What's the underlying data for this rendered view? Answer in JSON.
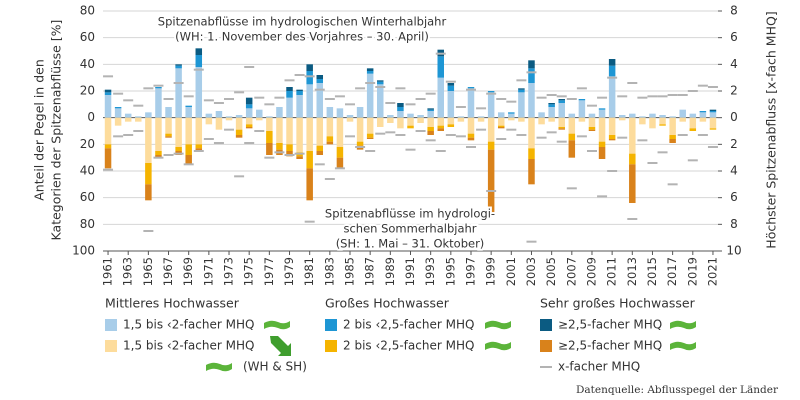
{
  "chart_data": {
    "type": "bar",
    "ylabel": [
      "Anteil der Pegel in den",
      "Kategorien der Spitzenabflüsse [%]"
    ],
    "y2label": "Höchster Spitzenabfluss [x-fach MHQ]",
    "annotations": [
      [
        "Spitzenabflüsse im hydrologischen Winterhalbjahr",
        "(WH: 1. November des Vorjahres – 30. April)"
      ],
      [
        "Spitzenabflüsse im hydrologi-",
        "schen Sommerhalbjahr",
        "(SH: 1. Mai – 31. Oktober)"
      ]
    ],
    "source": "Datenquelle: Abflusspegel der Länder",
    "legend_groups": [
      "Mittleres Hochwasser",
      "Großes Hochwasser",
      "Sehr großes Hochwasser"
    ],
    "x": [
      1961,
      1962,
      1963,
      1964,
      1965,
      1966,
      1967,
      1968,
      1969,
      1970,
      1971,
      1972,
      1973,
      1974,
      1975,
      1976,
      1977,
      1978,
      1979,
      1980,
      1981,
      1982,
      1983,
      1984,
      1985,
      1986,
      1987,
      1988,
      1989,
      1990,
      1991,
      1992,
      1993,
      1994,
      1995,
      1996,
      1997,
      1998,
      1999,
      2000,
      2001,
      2002,
      2003,
      2004,
      2005,
      2006,
      2007,
      2008,
      2009,
      2010,
      2011,
      2012,
      2013,
      2014,
      2015,
      2016,
      2017,
      2018,
      2019,
      2020,
      2021
    ],
    "xlim": [
      1960.5,
      2021.5
    ],
    "xticks": [
      1961,
      1963,
      1965,
      1967,
      1969,
      1971,
      1973,
      1975,
      1977,
      1979,
      1981,
      1983,
      1985,
      1987,
      1989,
      1991,
      1993,
      1995,
      1997,
      1999,
      2001,
      2003,
      2005,
      2007,
      2009,
      2011,
      2013,
      2015,
      2017,
      2019,
      2021
    ],
    "ylim": [
      -100,
      80
    ],
    "yticks": [
      80,
      60,
      40,
      20,
      0,
      {
        "value": -20,
        "label": "20"
      },
      {
        "value": -40,
        "label": "40"
      },
      {
        "value": -60,
        "label": "60"
      },
      {
        "value": -80,
        "label": "80"
      },
      {
        "value": -100,
        "label": "100"
      }
    ],
    "y2lim": [
      -10,
      8
    ],
    "y2ticks": [
      8,
      6,
      4,
      2,
      0,
      {
        "value": -2,
        "label": "2"
      },
      {
        "value": -4,
        "label": "4"
      },
      {
        "value": -6,
        "label": "6"
      },
      {
        "value": -8,
        "label": "8"
      },
      {
        "value": -10,
        "label": "10"
      }
    ],
    "grid": true,
    "series": [
      {
        "name": "1,5 bis ‹2-facher MHQ",
        "color": "#a8cde9",
        "values": [
          17,
          7,
          3,
          1,
          4,
          22,
          8,
          37,
          8,
          38,
          3,
          5,
          1,
          2,
          7,
          6,
          1,
          8,
          15,
          17,
          25,
          26,
          8,
          7,
          2,
          8,
          33,
          25,
          2,
          5,
          3,
          2,
          5,
          30,
          20,
          1,
          22,
          1,
          19,
          4,
          3,
          19,
          26,
          4,
          8,
          11,
          3,
          13,
          3,
          6,
          31,
          2,
          3,
          1,
          3,
          2,
          1,
          6,
          3,
          4,
          4
        ]
      },
      {
        "name": "1,5 bis ‹2-facher MHQ",
        "color": "#fddc9c",
        "values": [
          -20,
          -6,
          -3,
          -3,
          -34,
          -25,
          -12,
          -22,
          -20,
          -20,
          -5,
          -9,
          -2,
          -9,
          -5,
          -2,
          -10,
          -19,
          -20,
          -26,
          -25,
          -21,
          -14,
          -22,
          -3,
          -18,
          -12,
          -7,
          -4,
          -8,
          -6,
          -4,
          -7,
          -6,
          -5,
          -3,
          -12,
          -3,
          -18,
          -6,
          -2,
          -3,
          -23,
          -5,
          -3,
          -7,
          -12,
          -3,
          -7,
          -18,
          -13,
          -2,
          -27,
          -5,
          -8,
          -5,
          -13,
          -3,
          -8,
          -3,
          -8
        ]
      },
      {
        "name": "2 bis ‹2,5-facher MHQ",
        "color": "#1e96d4",
        "values": [
          2,
          1,
          0,
          0,
          0,
          1,
          0,
          2,
          1,
          9,
          0,
          0,
          0,
          0,
          3,
          0,
          0,
          0,
          5,
          3,
          10,
          3,
          0,
          0,
          0,
          0,
          2,
          2,
          0,
          3,
          0,
          0,
          1,
          16,
          4,
          0,
          1,
          0,
          1,
          0,
          1,
          2,
          11,
          0,
          2,
          2,
          0,
          1,
          0,
          1,
          8,
          0,
          0,
          0,
          0,
          0,
          0,
          0,
          0,
          1,
          1
        ]
      },
      {
        "name": "2 bis ‹2,5-facher MHQ",
        "color": "#f5b400",
        "values": [
          -3,
          0,
          0,
          0,
          -16,
          -3,
          -2,
          -3,
          -8,
          -3,
          0,
          0,
          0,
          -4,
          -2,
          0,
          -9,
          -5,
          -5,
          -3,
          -13,
          -4,
          -4,
          -8,
          0,
          -3,
          -3,
          0,
          0,
          0,
          -2,
          0,
          -3,
          -2,
          -2,
          0,
          -3,
          0,
          -6,
          -1,
          0,
          0,
          -8,
          0,
          0,
          -1,
          -5,
          0,
          -2,
          -4,
          -3,
          0,
          -8,
          0,
          0,
          -1,
          -3,
          0,
          -2,
          0,
          -1
        ]
      },
      {
        "name": "≥2,5-facher MHQ",
        "color": "#0b5b82",
        "values": [
          2,
          0,
          0,
          0,
          0,
          0,
          0,
          1,
          0,
          5,
          0,
          0,
          0,
          0,
          5,
          0,
          0,
          0,
          3,
          1,
          5,
          3,
          0,
          0,
          0,
          0,
          2,
          1,
          0,
          3,
          0,
          0,
          1,
          5,
          2,
          0,
          0,
          0,
          0,
          0,
          0,
          1,
          6,
          0,
          1,
          1,
          0,
          0,
          0,
          0,
          5,
          0,
          0,
          0,
          0,
          0,
          0,
          0,
          0,
          0,
          1
        ]
      },
      {
        "name": "≥2,5-facher MHQ",
        "color": "#d9821b",
        "values": [
          -15,
          0,
          0,
          0,
          -12,
          -2,
          -1,
          -3,
          -7,
          -2,
          0,
          0,
          0,
          -2,
          -1,
          0,
          -9,
          -4,
          -4,
          -2,
          -24,
          -3,
          -2,
          -8,
          0,
          -3,
          -1,
          0,
          0,
          0,
          0,
          0,
          -3,
          -2,
          0,
          0,
          -2,
          0,
          -47,
          -1,
          0,
          0,
          -19,
          0,
          0,
          -1,
          -13,
          0,
          -1,
          -9,
          -1,
          0,
          -29,
          0,
          0,
          0,
          -3,
          0,
          0,
          0,
          0
        ]
      },
      {
        "name": "x-facher MHQ",
        "note": "(WH & SH)",
        "color": "#b3b3b3",
        "axis": "y2",
        "values": [
          3.1,
          1.8,
          1.3,
          0.9,
          2.2,
          2.4,
          1.4,
          2.6,
          1.6,
          3.6,
          1.3,
          1.1,
          1.4,
          1.9,
          3.8,
          1.5,
          1.0,
          1.5,
          2.8,
          3.2,
          3.1,
          2.1,
          1.4,
          1.6,
          1.0,
          2.2,
          2.6,
          2.3,
          1.1,
          2.2,
          1.0,
          1.4,
          1.8,
          4.8,
          2.7,
          0.8,
          2.1,
          0.7,
          1.8,
          1.4,
          1.2,
          2.8,
          3.4,
          1.5,
          1.7,
          1.6,
          1.4,
          2.2,
          0.9,
          1.5,
          3.0,
          1.6,
          2.6,
          1.5,
          1.6,
          1.6,
          1.7,
          1.7,
          2.0,
          2.4,
          2.3
        ]
      },
      {
        "color": "#b3b3b3",
        "axis": "y2",
        "values": [
          -3.9,
          -1.4,
          -1.3,
          -1.0,
          -8.5,
          -3.0,
          -2.8,
          -2.7,
          -3.5,
          -2.5,
          -1.6,
          -1.9,
          -0.9,
          -4.4,
          -1.9,
          -1.0,
          -3.0,
          -2.6,
          -2.8,
          -2.7,
          -7.8,
          -3.5,
          -4.6,
          -3.8,
          -1.4,
          -2.2,
          -2.5,
          -1.2,
          -1.1,
          -1.3,
          -2.4,
          -1.0,
          -1.7,
          -2.5,
          -1.3,
          -1.4,
          -2.2,
          -0.9,
          -5.5,
          -1.6,
          -0.9,
          -1.3,
          -9.3,
          -1.5,
          -1.1,
          -1.8,
          -5.3,
          -1.4,
          -2.5,
          -5.9,
          -4.0,
          -1.5,
          -7.6,
          -1.7,
          -3.4,
          -2.6,
          -5.0,
          -1.3,
          -3.2,
          -1.3,
          -2.2
        ]
      }
    ]
  }
}
